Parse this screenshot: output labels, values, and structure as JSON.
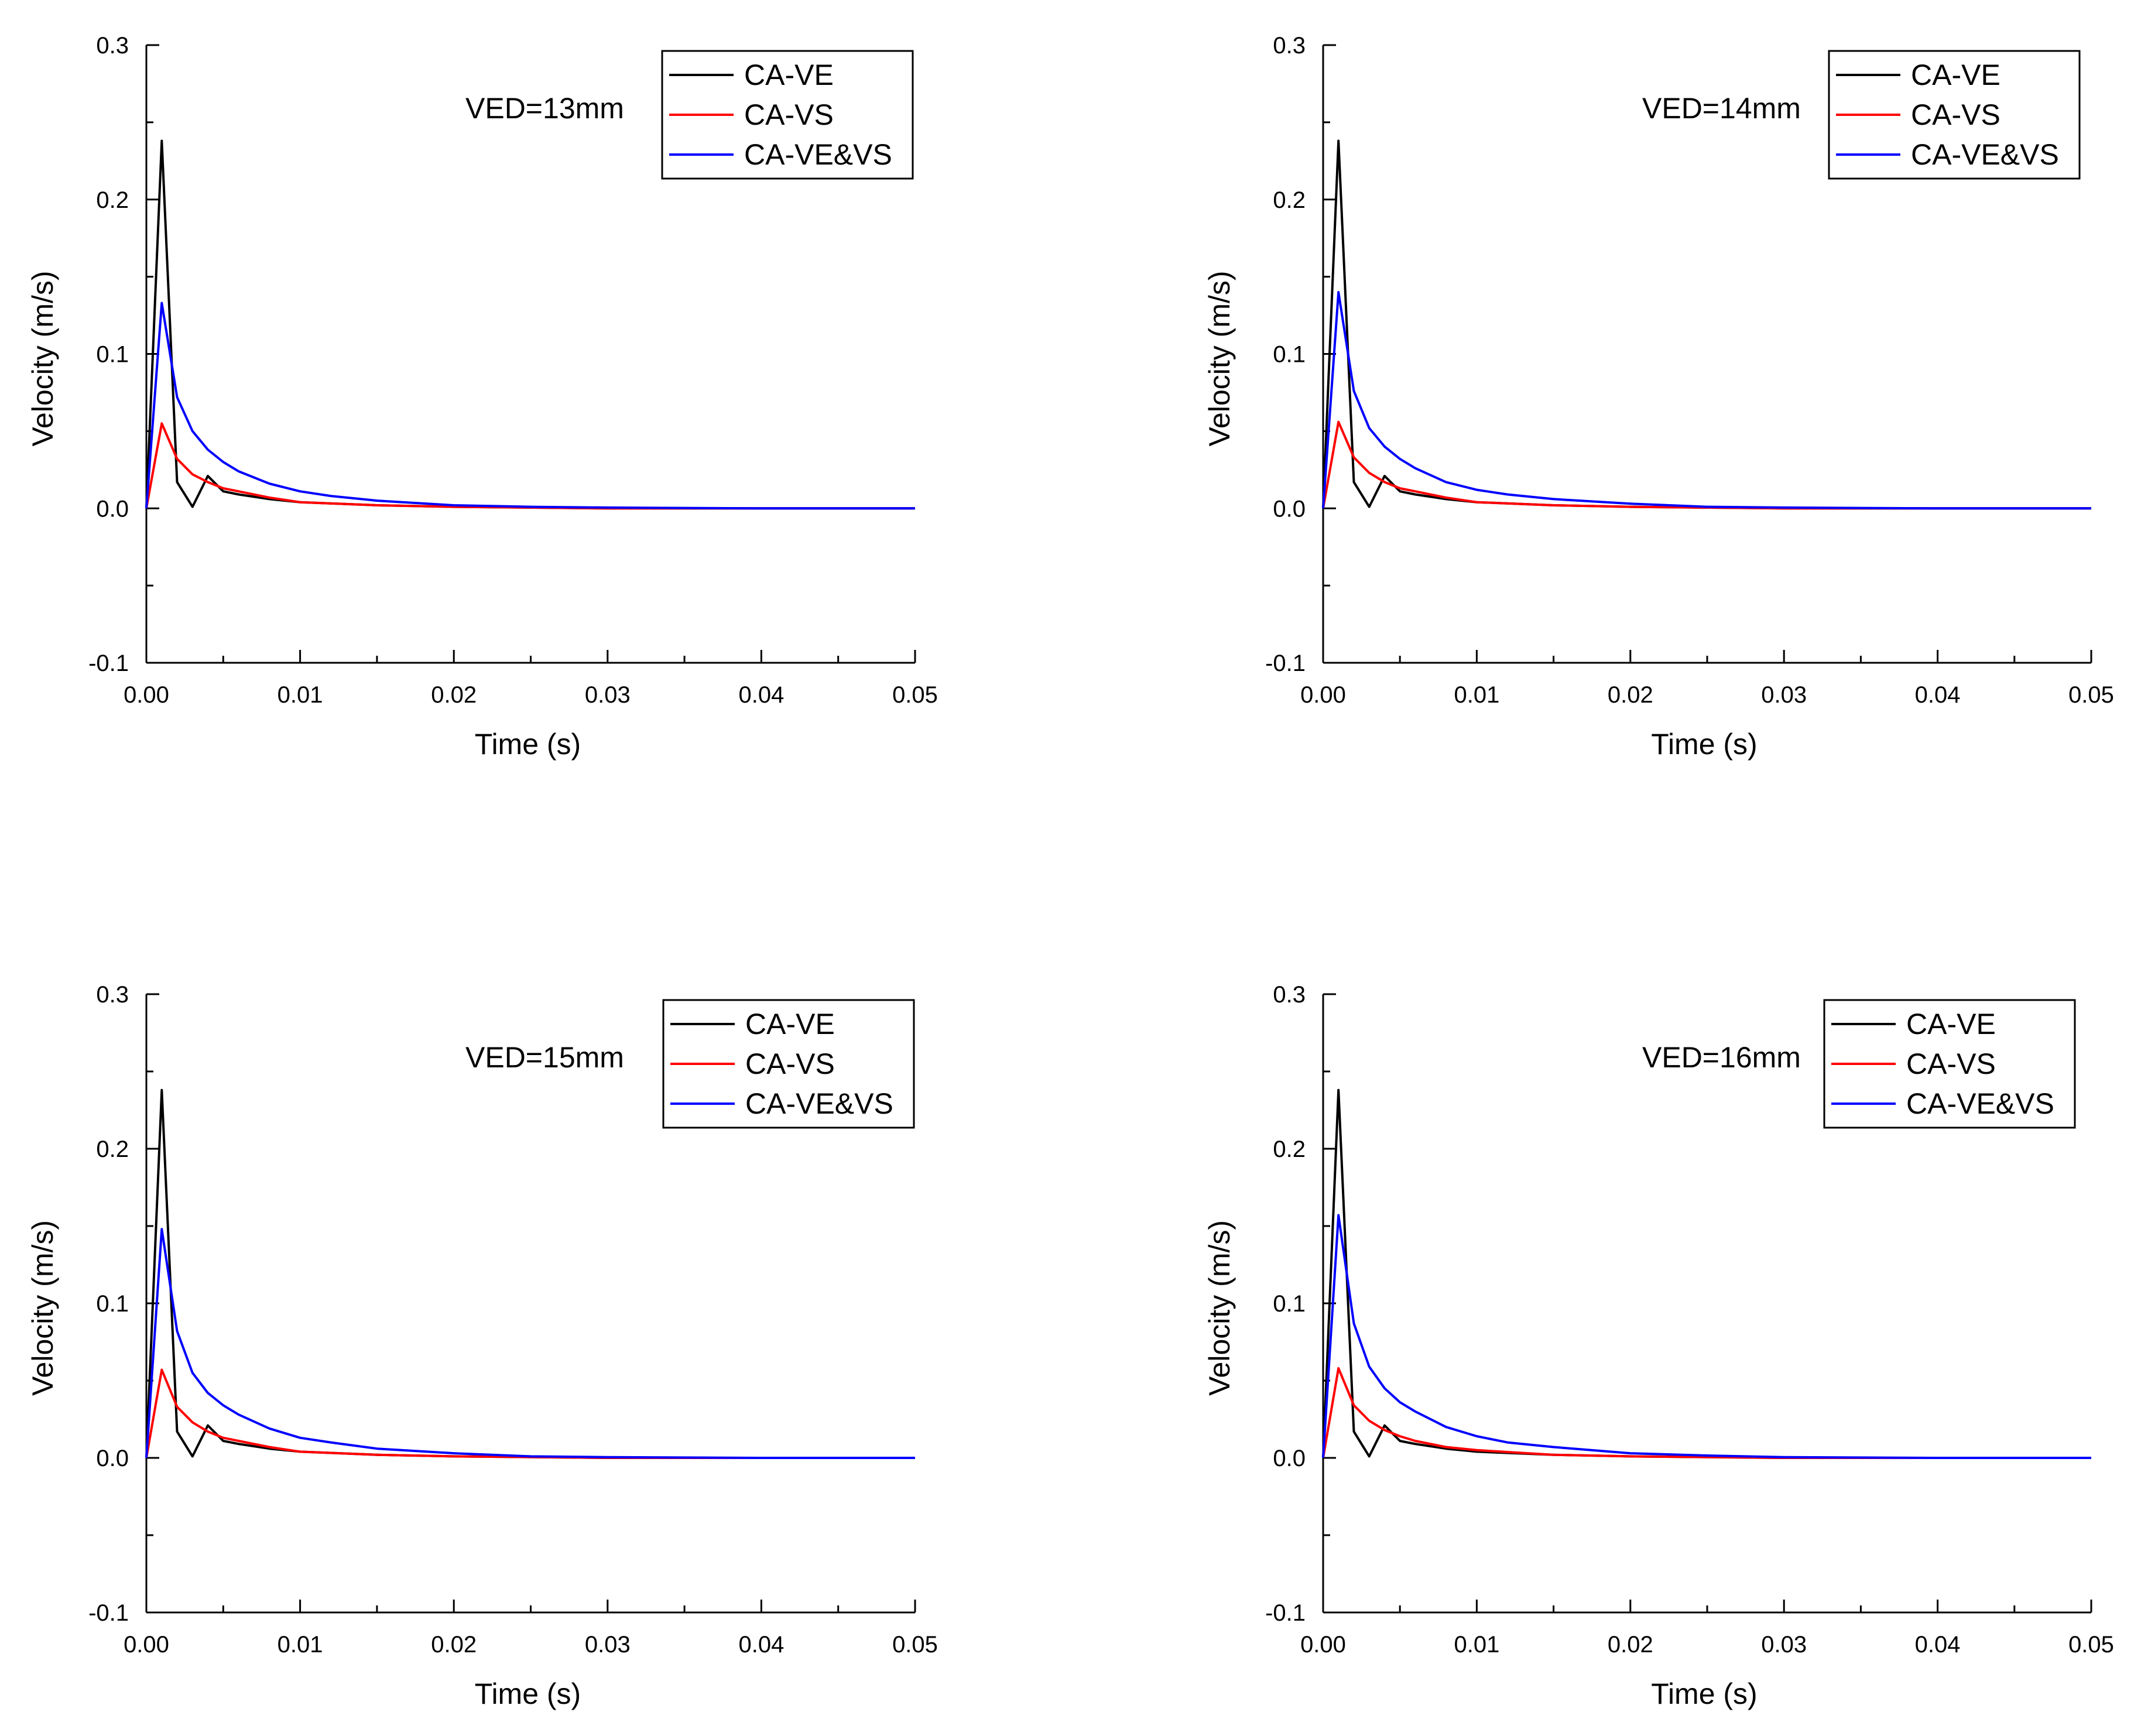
{
  "chart_data": [
    {
      "type": "line",
      "annotation": "VED=13mm",
      "xlabel": "Time (s)",
      "ylabel": "Velocity (m/s)",
      "xlim": [
        0,
        0.05
      ],
      "ylim": [
        -0.1,
        0.3
      ],
      "x_ticks": [
        "0.00",
        "0.01",
        "0.02",
        "0.03",
        "0.04",
        "0.05"
      ],
      "y_ticks": [
        "-0.1",
        "0.0",
        "0.1",
        "0.2",
        "0.3"
      ],
      "legend_position": "top-right",
      "series": [
        {
          "name": "CA-VE",
          "color": "#000000",
          "x": [
            0,
            0.001,
            0.002,
            0.003,
            0.004,
            0.005,
            0.006,
            0.008,
            0.01,
            0.015,
            0.02,
            0.03,
            0.05
          ],
          "y": [
            0,
            0.238,
            0.017,
            0.001,
            0.021,
            0.011,
            0.009,
            0.006,
            0.004,
            0.002,
            0.001,
            0,
            0
          ]
        },
        {
          "name": "CA-VS",
          "color": "#ff0000",
          "x": [
            0,
            0.001,
            0.002,
            0.003,
            0.004,
            0.005,
            0.006,
            0.008,
            0.01,
            0.015,
            0.02,
            0.03,
            0.05
          ],
          "y": [
            0,
            0.055,
            0.032,
            0.022,
            0.017,
            0.013,
            0.011,
            0.007,
            0.004,
            0.002,
            0.001,
            0,
            0
          ]
        },
        {
          "name": "CA-VE&VS",
          "color": "#0000ff",
          "x": [
            0,
            0.001,
            0.002,
            0.003,
            0.004,
            0.005,
            0.006,
            0.008,
            0.01,
            0.012,
            0.015,
            0.02,
            0.025,
            0.03,
            0.04,
            0.05
          ],
          "y": [
            0,
            0.133,
            0.072,
            0.05,
            0.038,
            0.03,
            0.024,
            0.016,
            0.011,
            0.008,
            0.005,
            0.002,
            0.001,
            0.0005,
            0,
            0
          ]
        }
      ]
    },
    {
      "type": "line",
      "annotation": "VED=14mm",
      "xlabel": "Time (s)",
      "ylabel": "Velocity (m/s)",
      "xlim": [
        0,
        0.05
      ],
      "ylim": [
        -0.1,
        0.3
      ],
      "x_ticks": [
        "0.00",
        "0.01",
        "0.02",
        "0.03",
        "0.04",
        "0.05"
      ],
      "y_ticks": [
        "-0.1",
        "0.0",
        "0.1",
        "0.2",
        "0.3"
      ],
      "legend_position": "top-right",
      "series": [
        {
          "name": "CA-VE",
          "color": "#000000",
          "x": [
            0,
            0.001,
            0.002,
            0.003,
            0.004,
            0.005,
            0.006,
            0.008,
            0.01,
            0.015,
            0.02,
            0.03,
            0.05
          ],
          "y": [
            0,
            0.238,
            0.017,
            0.001,
            0.021,
            0.011,
            0.009,
            0.006,
            0.004,
            0.002,
            0.001,
            0,
            0
          ]
        },
        {
          "name": "CA-VS",
          "color": "#ff0000",
          "x": [
            0,
            0.001,
            0.002,
            0.003,
            0.004,
            0.005,
            0.006,
            0.008,
            0.01,
            0.015,
            0.02,
            0.03,
            0.05
          ],
          "y": [
            0,
            0.056,
            0.033,
            0.023,
            0.017,
            0.013,
            0.011,
            0.007,
            0.004,
            0.002,
            0.001,
            0,
            0
          ]
        },
        {
          "name": "CA-VE&VS",
          "color": "#0000ff",
          "x": [
            0,
            0.001,
            0.002,
            0.003,
            0.004,
            0.005,
            0.006,
            0.008,
            0.01,
            0.012,
            0.015,
            0.02,
            0.025,
            0.03,
            0.04,
            0.05
          ],
          "y": [
            0,
            0.14,
            0.076,
            0.052,
            0.04,
            0.032,
            0.026,
            0.017,
            0.012,
            0.009,
            0.006,
            0.003,
            0.001,
            0.0005,
            0,
            0
          ]
        }
      ]
    },
    {
      "type": "line",
      "annotation": "VED=15mm",
      "xlabel": "Time (s)",
      "ylabel": "Velocity (m/s)",
      "xlim": [
        0,
        0.05
      ],
      "ylim": [
        -0.1,
        0.3
      ],
      "x_ticks": [
        "0.00",
        "0.01",
        "0.02",
        "0.03",
        "0.04",
        "0.05"
      ],
      "y_ticks": [
        "-0.1",
        "0.0",
        "0.1",
        "0.2",
        "0.3"
      ],
      "legend_position": "top-right",
      "series": [
        {
          "name": "CA-VE",
          "color": "#000000",
          "x": [
            0,
            0.001,
            0.002,
            0.003,
            0.004,
            0.005,
            0.006,
            0.008,
            0.01,
            0.015,
            0.02,
            0.03,
            0.05
          ],
          "y": [
            0,
            0.238,
            0.017,
            0.001,
            0.021,
            0.011,
            0.009,
            0.006,
            0.004,
            0.002,
            0.001,
            0,
            0
          ]
        },
        {
          "name": "CA-VS",
          "color": "#ff0000",
          "x": [
            0,
            0.001,
            0.002,
            0.003,
            0.004,
            0.005,
            0.006,
            0.008,
            0.01,
            0.015,
            0.02,
            0.03,
            0.05
          ],
          "y": [
            0,
            0.057,
            0.033,
            0.023,
            0.017,
            0.013,
            0.011,
            0.007,
            0.004,
            0.002,
            0.001,
            0,
            0
          ]
        },
        {
          "name": "CA-VE&VS",
          "color": "#0000ff",
          "x": [
            0,
            0.001,
            0.002,
            0.003,
            0.004,
            0.005,
            0.006,
            0.008,
            0.01,
            0.012,
            0.015,
            0.02,
            0.025,
            0.03,
            0.04,
            0.05
          ],
          "y": [
            0,
            0.148,
            0.082,
            0.055,
            0.042,
            0.034,
            0.028,
            0.019,
            0.013,
            0.01,
            0.006,
            0.003,
            0.001,
            0.0005,
            0,
            0
          ]
        }
      ]
    },
    {
      "type": "line",
      "annotation": "VED=16mm",
      "xlabel": "Time (s)",
      "ylabel": "Velocity (m/s)",
      "xlim": [
        0,
        0.05
      ],
      "ylim": [
        -0.1,
        0.3
      ],
      "x_ticks": [
        "0.00",
        "0.01",
        "0.02",
        "0.03",
        "0.04",
        "0.05"
      ],
      "y_ticks": [
        "-0.1",
        "0.0",
        "0.1",
        "0.2",
        "0.3"
      ],
      "legend_position": "top-right",
      "series": [
        {
          "name": "CA-VE",
          "color": "#000000",
          "x": [
            0,
            0.001,
            0.002,
            0.003,
            0.004,
            0.005,
            0.006,
            0.008,
            0.01,
            0.015,
            0.02,
            0.03,
            0.05
          ],
          "y": [
            0,
            0.238,
            0.017,
            0.001,
            0.021,
            0.011,
            0.009,
            0.006,
            0.004,
            0.002,
            0.001,
            0,
            0
          ]
        },
        {
          "name": "CA-VS",
          "color": "#ff0000",
          "x": [
            0,
            0.001,
            0.002,
            0.003,
            0.004,
            0.005,
            0.006,
            0.008,
            0.01,
            0.015,
            0.02,
            0.03,
            0.05
          ],
          "y": [
            0,
            0.058,
            0.034,
            0.024,
            0.018,
            0.014,
            0.011,
            0.007,
            0.005,
            0.002,
            0.001,
            0,
            0
          ]
        },
        {
          "name": "CA-VE&VS",
          "color": "#0000ff",
          "x": [
            0,
            0.001,
            0.002,
            0.003,
            0.004,
            0.005,
            0.006,
            0.008,
            0.01,
            0.012,
            0.015,
            0.02,
            0.025,
            0.03,
            0.04,
            0.05
          ],
          "y": [
            0,
            0.157,
            0.087,
            0.059,
            0.045,
            0.036,
            0.03,
            0.02,
            0.014,
            0.01,
            0.007,
            0.003,
            0.0015,
            0.0005,
            0,
            0
          ]
        }
      ]
    }
  ]
}
